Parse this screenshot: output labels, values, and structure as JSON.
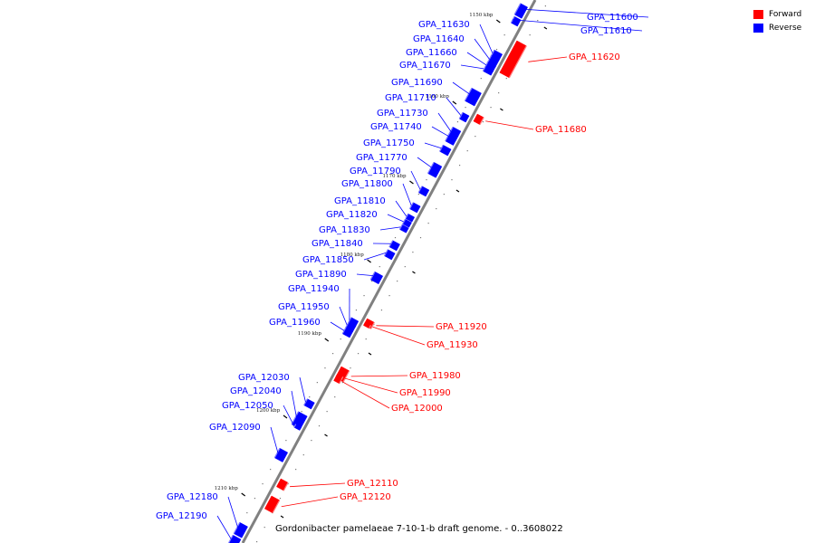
{
  "legend": [
    {
      "label": "Forward",
      "color": "#ff0000"
    },
    {
      "label": "Reverse",
      "color": "#0000ff"
    }
  ],
  "caption": "Gordonibacter pamelaeae 7-10-1-b draft genome. - 0..3608022",
  "colors": {
    "forward": "#ff0000",
    "reverse": "#0000ff",
    "backbone": "#808080"
  },
  "ticks": [
    {
      "kbp": 1150,
      "label": "1150 kbp"
    },
    {
      "kbp": 1160,
      "label": "1160 kbp"
    },
    {
      "kbp": 1170,
      "label": "1170 kbp"
    },
    {
      "kbp": 1180,
      "label": "1180 kbp"
    },
    {
      "kbp": 1190,
      "label": "1190 kbp"
    },
    {
      "kbp": 1200,
      "label": "1200 kbp"
    },
    {
      "kbp": 1210,
      "label": "1210 kbp"
    }
  ],
  "genes": [
    {
      "name": "GPA_11600",
      "strand": "reverse"
    },
    {
      "name": "GPA_11610",
      "strand": "reverse"
    },
    {
      "name": "GPA_11620",
      "strand": "forward"
    },
    {
      "name": "GPA_11630",
      "strand": "reverse"
    },
    {
      "name": "GPA_11640",
      "strand": "reverse"
    },
    {
      "name": "GPA_11660",
      "strand": "reverse"
    },
    {
      "name": "GPA_11670",
      "strand": "reverse"
    },
    {
      "name": "GPA_11680",
      "strand": "forward"
    },
    {
      "name": "GPA_11690",
      "strand": "reverse"
    },
    {
      "name": "GPA_11710",
      "strand": "reverse"
    },
    {
      "name": "GPA_11730",
      "strand": "reverse"
    },
    {
      "name": "GPA_11740",
      "strand": "reverse"
    },
    {
      "name": "GPA_11750",
      "strand": "reverse"
    },
    {
      "name": "GPA_11770",
      "strand": "reverse"
    },
    {
      "name": "GPA_11790",
      "strand": "reverse"
    },
    {
      "name": "GPA_11800",
      "strand": "reverse"
    },
    {
      "name": "GPA_11810",
      "strand": "reverse"
    },
    {
      "name": "GPA_11820",
      "strand": "reverse"
    },
    {
      "name": "GPA_11830",
      "strand": "reverse"
    },
    {
      "name": "GPA_11840",
      "strand": "reverse"
    },
    {
      "name": "GPA_11850",
      "strand": "reverse"
    },
    {
      "name": "GPA_11890",
      "strand": "reverse"
    },
    {
      "name": "GPA_11920",
      "strand": "forward"
    },
    {
      "name": "GPA_11930",
      "strand": "forward"
    },
    {
      "name": "GPA_11940",
      "strand": "reverse"
    },
    {
      "name": "GPA_11950",
      "strand": "reverse"
    },
    {
      "name": "GPA_11960",
      "strand": "reverse"
    },
    {
      "name": "GPA_11980",
      "strand": "forward"
    },
    {
      "name": "GPA_11990",
      "strand": "forward"
    },
    {
      "name": "GPA_12000",
      "strand": "forward"
    },
    {
      "name": "GPA_12030",
      "strand": "reverse"
    },
    {
      "name": "GPA_12040",
      "strand": "reverse"
    },
    {
      "name": "GPA_12050",
      "strand": "reverse"
    },
    {
      "name": "GPA_12090",
      "strand": "reverse"
    },
    {
      "name": "GPA_12110",
      "strand": "forward"
    },
    {
      "name": "GPA_12120",
      "strand": "forward"
    },
    {
      "name": "GPA_12180",
      "strand": "reverse"
    },
    {
      "name": "GPA_12190",
      "strand": "reverse"
    }
  ]
}
